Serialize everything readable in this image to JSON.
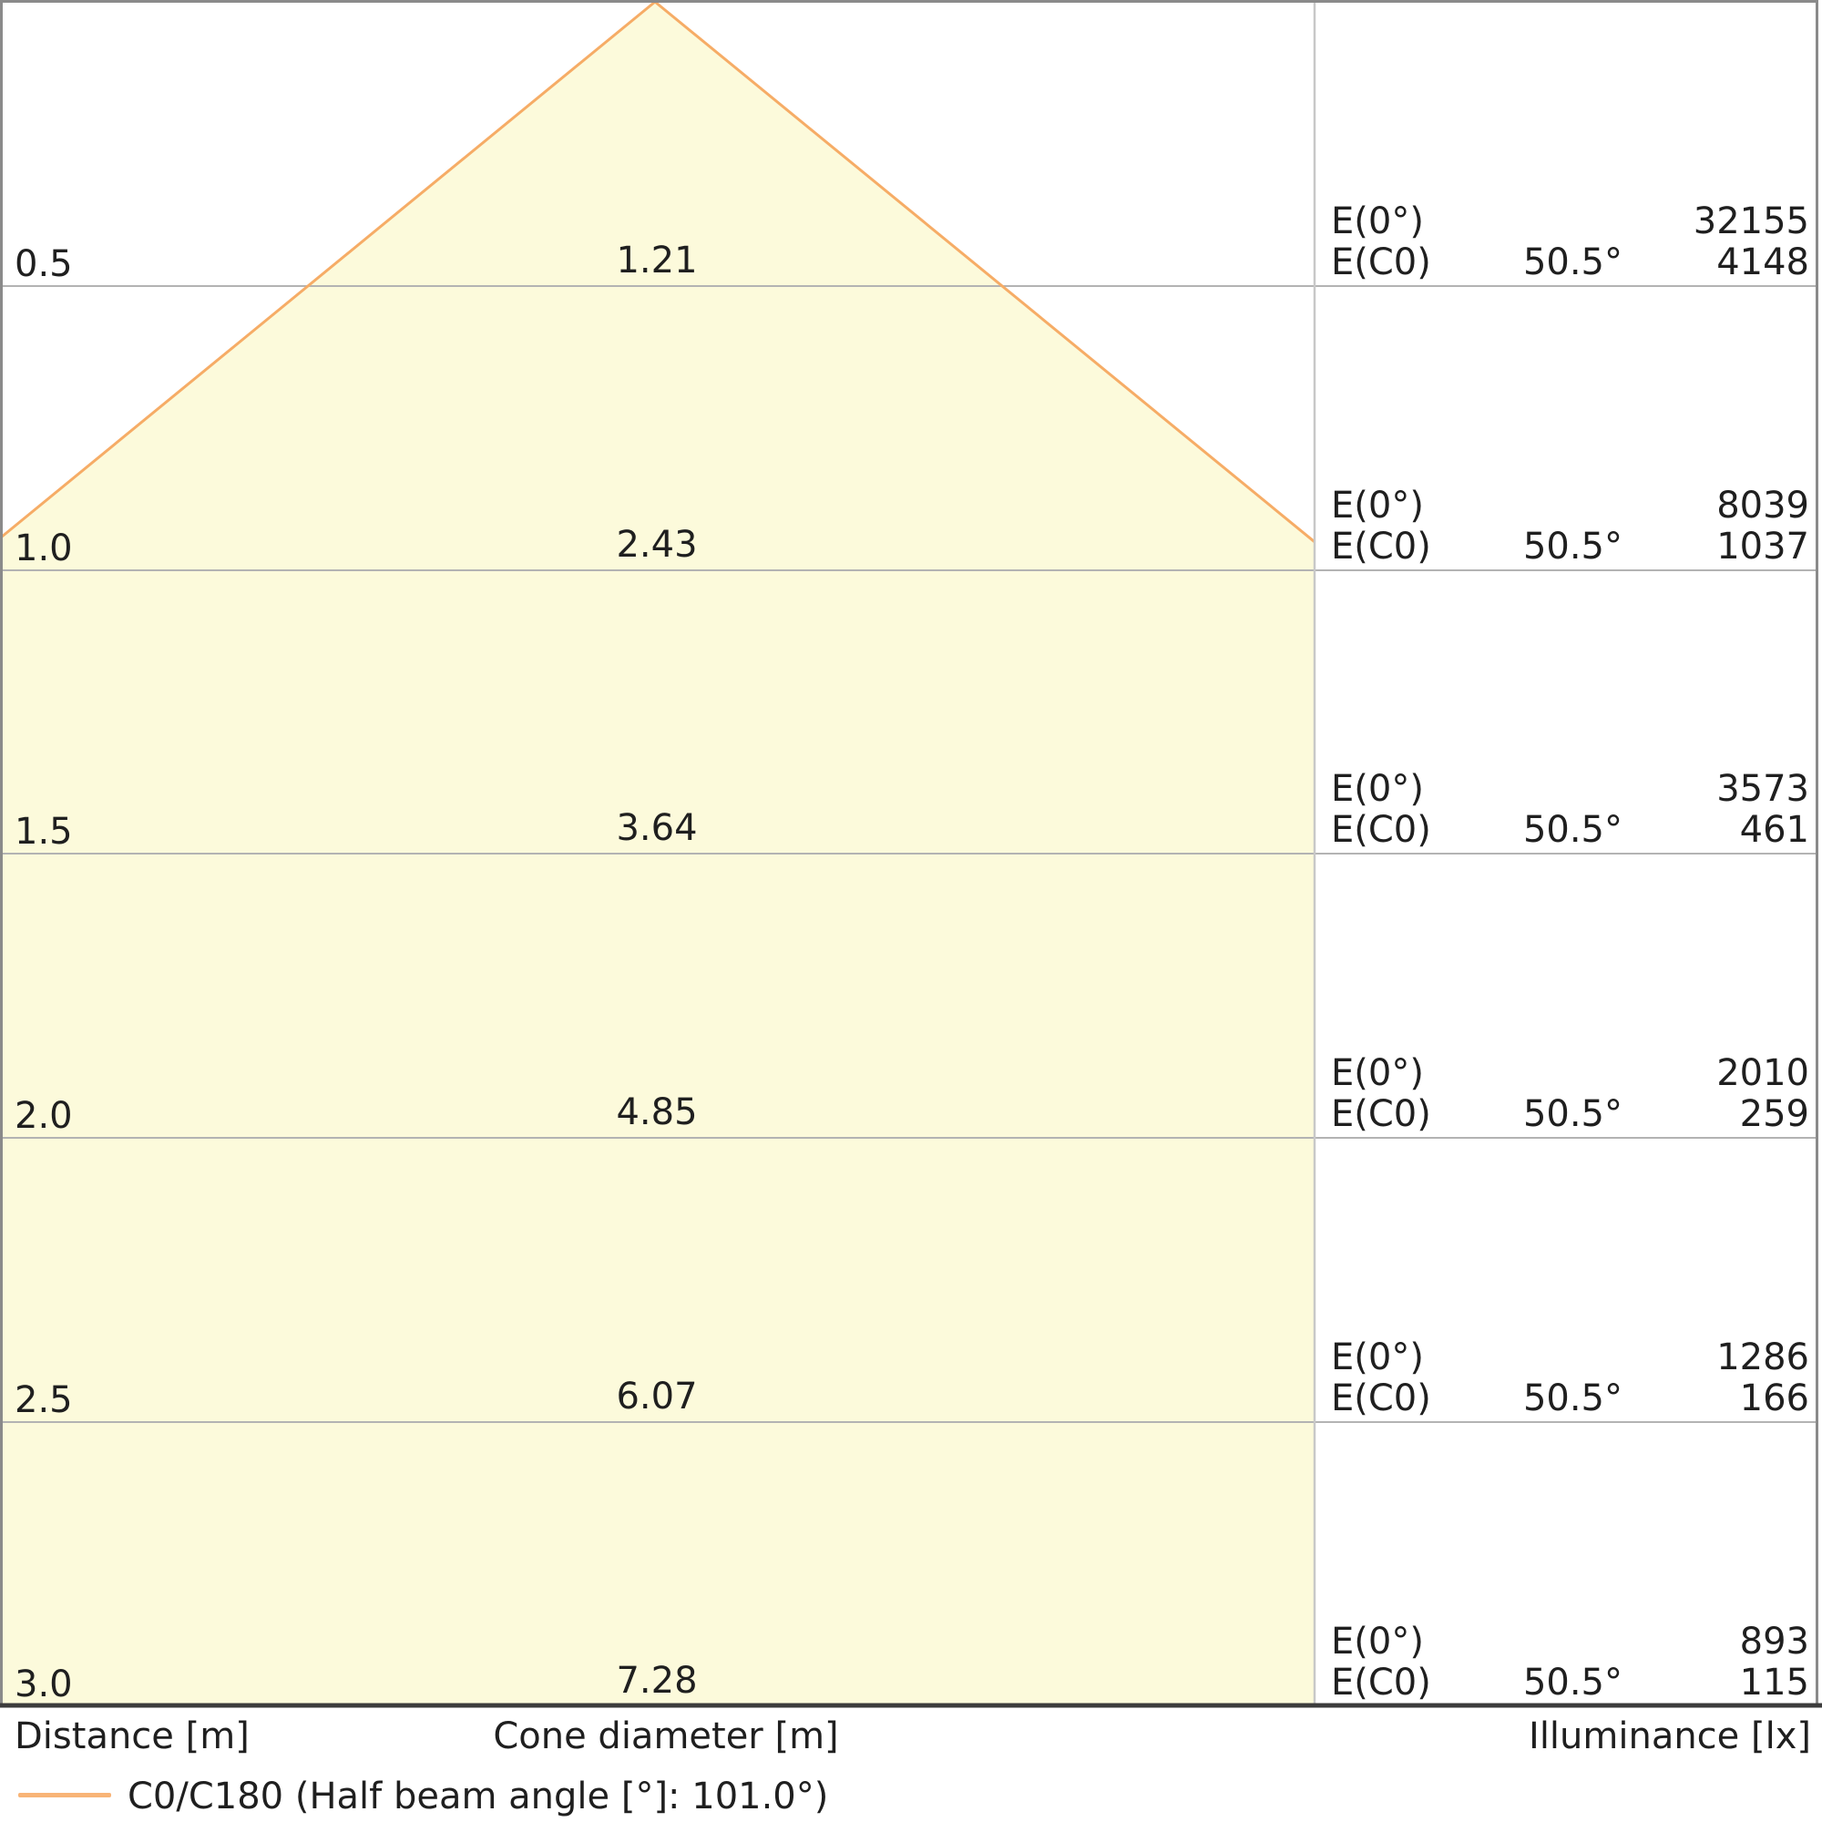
{
  "chart_data": {
    "type": "area",
    "subtype": "photometric-light-cone-diagram",
    "x_axis_label": "Distance [m]",
    "center_axis_label": "Cone diameter [m]",
    "right_axis_label": "Illuminance [lx]",
    "legend": {
      "label": "C0/C180 (Half beam angle [°]: 101.0°)"
    },
    "full_beam_angle_deg": 101.0,
    "half_beam_angle_deg": 50.5,
    "row_labels": {
      "e0": "E(0°)",
      "ec0": "E(C0)"
    },
    "axis": {
      "distance_range_m": [
        0,
        3.0
      ],
      "distance_step_m": 0.5,
      "grid": true
    },
    "rows": [
      {
        "distance": "0.5",
        "distance_m": 0.5,
        "diameter": "1.21",
        "diameter_m": 1.21,
        "angle": "50.5°",
        "e0": "32155",
        "e0_lx": 32155,
        "ec0": "4148",
        "ec0_lx": 4148
      },
      {
        "distance": "1.0",
        "distance_m": 1.0,
        "diameter": "2.43",
        "diameter_m": 2.43,
        "angle": "50.5°",
        "e0": "8039",
        "e0_lx": 8039,
        "ec0": "1037",
        "ec0_lx": 1037
      },
      {
        "distance": "1.5",
        "distance_m": 1.5,
        "diameter": "3.64",
        "diameter_m": 3.64,
        "angle": "50.5°",
        "e0": "3573",
        "e0_lx": 3573,
        "ec0": "461",
        "ec0_lx": 461
      },
      {
        "distance": "2.0",
        "distance_m": 2.0,
        "diameter": "4.85",
        "diameter_m": 4.85,
        "angle": "50.5°",
        "e0": "2010",
        "e0_lx": 2010,
        "ec0": "259",
        "ec0_lx": 259
      },
      {
        "distance": "2.5",
        "distance_m": 2.5,
        "diameter": "6.07",
        "diameter_m": 6.07,
        "angle": "50.5°",
        "e0": "1286",
        "e0_lx": 1286,
        "ec0": "166",
        "ec0_lx": 166
      },
      {
        "distance": "3.0",
        "distance_m": 3.0,
        "diameter": "7.28",
        "diameter_m": 7.28,
        "angle": "50.5°",
        "e0": "893",
        "e0_lx": 893,
        "ec0": "115",
        "ec0_lx": 115
      }
    ],
    "colors": {
      "background": "#FFFFFF",
      "cone_fill": "#FCFADB",
      "cone_edge": "#F6AC66",
      "legend_line": "#F8B476",
      "gridline": "#B3B3B3",
      "divider": "#C8C8C8",
      "border": "#8A8A8A",
      "bottom_border": "#3C3C3C",
      "text": "#1F1F1F"
    }
  }
}
